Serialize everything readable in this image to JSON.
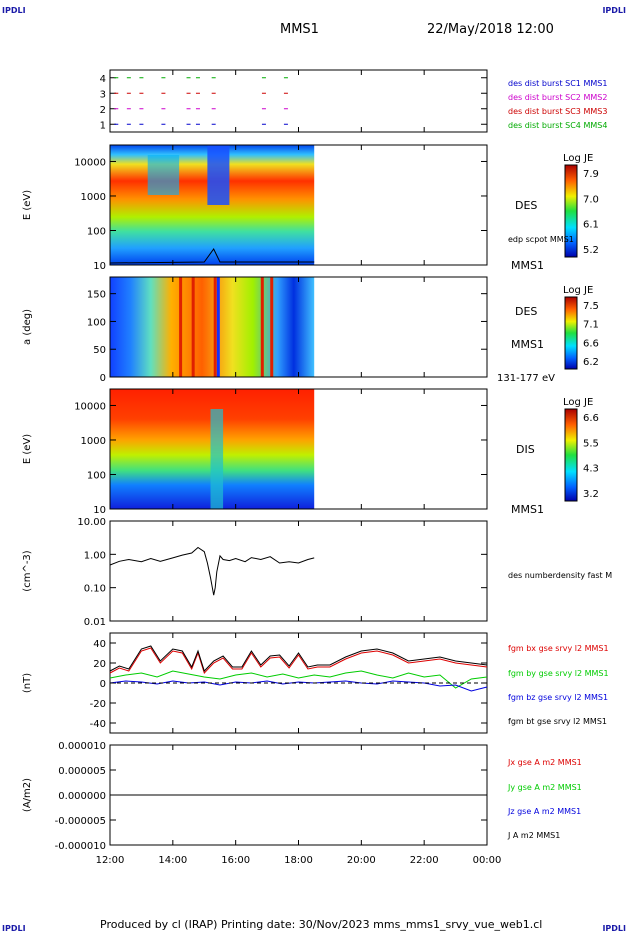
{
  "header": {
    "corner_left": "IPDLI",
    "corner_right": "IPDLI",
    "title": "MMS1",
    "datetime": "22/May/2018 12:00"
  },
  "footer": {
    "credit": "Produced by cl (IRAP)   Printing date: 30/Nov/2023   mms_mms1_srvy_vue_web1.cl",
    "corner_left": "IPDLI",
    "corner_right": "IPDLI"
  },
  "colors": {
    "des_burst_1": "#0000cc",
    "des_burst_2": "#cc00cc",
    "des_burst_3": "#cc0000",
    "des_burst_4": "#00aa00",
    "bx": "#dd0000",
    "by": "#00cc00",
    "bz": "#0000dd",
    "bt": "#000000"
  },
  "chart_data": [
    {
      "id": "burst",
      "type": "scatter",
      "y_ticks": [
        "1",
        "2",
        "3",
        "4"
      ],
      "legend": [
        "des dist burst SC1 MMS1",
        "des dist burst SC2 MMS2",
        "des dist burst SC3 MMS3",
        "des dist burst SC4 MMS4"
      ],
      "x": [
        12.2,
        12.6,
        13.0,
        13.7,
        14.5,
        14.8,
        15.3,
        16.9,
        17.6
      ],
      "ylim": [
        0.5,
        4.5
      ]
    },
    {
      "id": "des_energy",
      "type": "heatmap",
      "ylabel": "E (eV)",
      "y_ticks": [
        "10",
        "100",
        "1000",
        "10000"
      ],
      "ylim": [
        10,
        30000
      ],
      "colorbar_title": "Log JE",
      "colorbar_ticks": [
        "7.9",
        "7.0",
        "6.1",
        "5.2"
      ],
      "label": "DES",
      "overlay": "edp scpot MMS1",
      "mms": "MMS1"
    },
    {
      "id": "des_pitch",
      "type": "heatmap",
      "ylabel": "a (deg)",
      "y_ticks": [
        "0",
        "50",
        "100",
        "150"
      ],
      "ylim": [
        0,
        180
      ],
      "colorbar_title": "Log JE",
      "colorbar_ticks": [
        "7.5",
        "7.1",
        "6.6",
        "6.2"
      ],
      "label": "DES",
      "mms": "MMS1",
      "energy": "131-177 eV"
    },
    {
      "id": "dis_energy",
      "type": "heatmap",
      "ylabel": "E (eV)",
      "y_ticks": [
        "10",
        "100",
        "1000",
        "10000"
      ],
      "ylim": [
        10,
        30000
      ],
      "colorbar_title": "Log JE",
      "colorbar_ticks": [
        "6.6",
        "5.5",
        "4.3",
        "3.2"
      ],
      "label": "DIS",
      "mms": "MMS1"
    },
    {
      "id": "density",
      "type": "line",
      "ylabel": "(cm^-3)",
      "y_ticks": [
        "0.01",
        "0.10",
        "1.00",
        "10.00"
      ],
      "ylim": [
        0.01,
        10
      ],
      "series": [
        {
          "name": "des numberdensity fast M",
          "x": [
            12.0,
            12.3,
            12.6,
            13.0,
            13.3,
            13.6,
            14.0,
            14.3,
            14.6,
            14.8,
            15.0,
            15.1,
            15.2,
            15.3,
            15.35,
            15.4,
            15.5,
            15.6,
            15.8,
            16.0,
            16.3,
            16.5,
            16.8,
            17.1,
            17.4,
            17.7,
            18.0,
            18.3,
            18.5
          ],
          "y": [
            0.48,
            0.62,
            0.7,
            0.6,
            0.75,
            0.62,
            0.78,
            0.95,
            1.1,
            1.6,
            1.2,
            0.55,
            0.2,
            0.06,
            0.1,
            0.3,
            0.9,
            0.7,
            0.65,
            0.75,
            0.6,
            0.8,
            0.7,
            0.85,
            0.55,
            0.6,
            0.55,
            0.7,
            0.78
          ]
        }
      ]
    },
    {
      "id": "bfield",
      "type": "line",
      "ylabel": "(nT)",
      "y_ticks": [
        "-40",
        "-20",
        "0",
        "20",
        "40"
      ],
      "ylim": [
        -50,
        50
      ],
      "series": [
        {
          "name": "fgm bx gse srvy l2 MMS1",
          "x": [
            12.0,
            12.3,
            12.6,
            13.0,
            13.3,
            13.6,
            14.0,
            14.3,
            14.6,
            14.8,
            15.0,
            15.3,
            15.6,
            15.9,
            16.2,
            16.5,
            16.8,
            17.1,
            17.4,
            17.7,
            18.0,
            18.3,
            18.6,
            19.0,
            19.5,
            20.0,
            20.5,
            21.0,
            21.5,
            22.0,
            22.5,
            23.0,
            23.5,
            24.0
          ],
          "y": [
            10,
            15,
            12,
            32,
            35,
            20,
            32,
            30,
            14,
            30,
            10,
            20,
            25,
            14,
            14,
            30,
            16,
            25,
            26,
            15,
            28,
            14,
            16,
            16,
            24,
            30,
            32,
            28,
            20,
            22,
            24,
            20,
            18,
            16
          ]
        },
        {
          "name": "fgm by gse srvy l2 MMS1",
          "x": [
            12.0,
            12.5,
            13.0,
            13.5,
            14.0,
            14.5,
            15.0,
            15.5,
            16.0,
            16.5,
            17.0,
            17.5,
            18.0,
            18.5,
            19.0,
            19.5,
            20.0,
            20.5,
            21.0,
            21.5,
            22.0,
            22.5,
            23.0,
            23.5,
            24.0
          ],
          "y": [
            5,
            8,
            10,
            6,
            12,
            9,
            6,
            4,
            8,
            10,
            6,
            9,
            5,
            8,
            6,
            10,
            12,
            8,
            5,
            10,
            6,
            8,
            -5,
            4,
            6
          ]
        },
        {
          "name": "fgm bz gse srvy l2 MMS1",
          "x": [
            12.0,
            12.5,
            13.0,
            13.5,
            14.0,
            14.5,
            15.0,
            15.5,
            16.0,
            16.5,
            17.0,
            17.5,
            18.0,
            18.5,
            19.0,
            19.5,
            20.0,
            20.5,
            21.0,
            21.5,
            22.0,
            22.5,
            23.0,
            23.5,
            24.0
          ],
          "y": [
            0,
            2,
            1,
            -1,
            2,
            0,
            1,
            -2,
            1,
            0,
            2,
            -1,
            1,
            0,
            1,
            2,
            0,
            -1,
            2,
            1,
            0,
            -3,
            -2,
            -8,
            -4
          ]
        },
        {
          "name": "fgm bt gse srvy l2 MMS1",
          "x": [
            12.0,
            12.3,
            12.6,
            13.0,
            13.3,
            13.6,
            14.0,
            14.3,
            14.6,
            14.8,
            15.0,
            15.3,
            15.6,
            15.9,
            16.2,
            16.5,
            16.8,
            17.1,
            17.4,
            17.7,
            18.0,
            18.3,
            18.6,
            19.0,
            19.5,
            20.0,
            20.5,
            21.0,
            21.5,
            22.0,
            22.5,
            23.0,
            23.5,
            24.0
          ],
          "y": [
            12,
            17,
            14,
            34,
            37,
            22,
            34,
            32,
            16,
            32,
            12,
            22,
            27,
            16,
            16,
            32,
            18,
            27,
            28,
            17,
            30,
            16,
            18,
            18,
            26,
            32,
            34,
            30,
            22,
            24,
            26,
            22,
            20,
            18
          ]
        }
      ]
    },
    {
      "id": "current",
      "type": "line",
      "ylabel": "(A/m2)",
      "y_ticks": [
        "-0.000010",
        "-0.000005",
        "0.000000",
        "0.000005",
        "0.000010"
      ],
      "ylim": [
        -1e-05,
        1e-05
      ],
      "series": [
        {
          "name": "Jx gse A m2 MMS1",
          "x": [
            12.0,
            24.0
          ],
          "y": [
            0,
            0
          ]
        },
        {
          "name": "Jy gse A m2 MMS1",
          "x": [
            12.0,
            24.0
          ],
          "y": [
            0,
            0
          ]
        },
        {
          "name": "Jz gse A m2 MMS1",
          "x": [
            12.0,
            24.0
          ],
          "y": [
            0,
            0
          ]
        },
        {
          "name": "J A m2 MMS1",
          "x": [
            12.0,
            24.0
          ],
          "y": [
            0,
            0
          ]
        }
      ]
    }
  ],
  "time_axis": {
    "ticks": [
      "12:00",
      "14:00",
      "16:00",
      "18:00",
      "20:00",
      "22:00",
      "00:00"
    ],
    "range": [
      12,
      24
    ]
  }
}
